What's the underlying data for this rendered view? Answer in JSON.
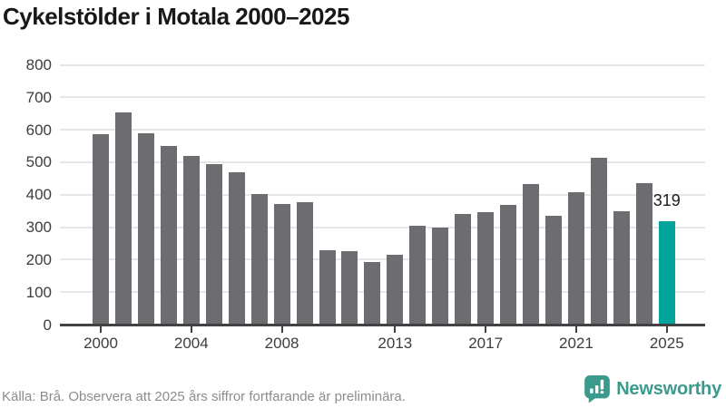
{
  "title": "Cykelstölder i Motala 2000–2025",
  "chart_data": {
    "type": "bar",
    "title": "Cykelstölder i Motala 2000–2025",
    "categories": [
      2000,
      2001,
      2002,
      2003,
      2004,
      2005,
      2006,
      2007,
      2008,
      2009,
      2010,
      2011,
      2012,
      2013,
      2014,
      2015,
      2016,
      2017,
      2018,
      2019,
      2020,
      2021,
      2022,
      2023,
      2024,
      2025
    ],
    "values": [
      586,
      654,
      590,
      549,
      518,
      495,
      470,
      402,
      370,
      376,
      230,
      225,
      192,
      216,
      303,
      298,
      342,
      345,
      368,
      433,
      336,
      408,
      515,
      349,
      436,
      319
    ],
    "xlabel": "",
    "ylabel": "",
    "ylim": [
      0,
      800
    ],
    "yticks": [
      0,
      100,
      200,
      300,
      400,
      500,
      600,
      700,
      800
    ],
    "xtick_labels": [
      "2000",
      "2004",
      "2008",
      "2013",
      "2017",
      "2021",
      "2025"
    ],
    "xtick_years": [
      2000,
      2004,
      2008,
      2013,
      2017,
      2021,
      2025
    ],
    "grid": true,
    "legend_position": "none",
    "highlight_index": 25,
    "highlight_label": "319",
    "bar_color": "#6c6c71",
    "highlight_color": "#00a49b"
  },
  "footer": {
    "source": "Källa: Brå. Observera att 2025 års siffror fortfarande är preliminära.",
    "brand": "Newsworthy"
  },
  "colors": {
    "background": "#ffffff",
    "title_text": "#181818",
    "axis_text": "#3d3d3d",
    "grid": "#e6e6e6",
    "axis_line": "#424242",
    "source_text": "#8c8c8c",
    "brand_teal": "#3a9b8c"
  }
}
